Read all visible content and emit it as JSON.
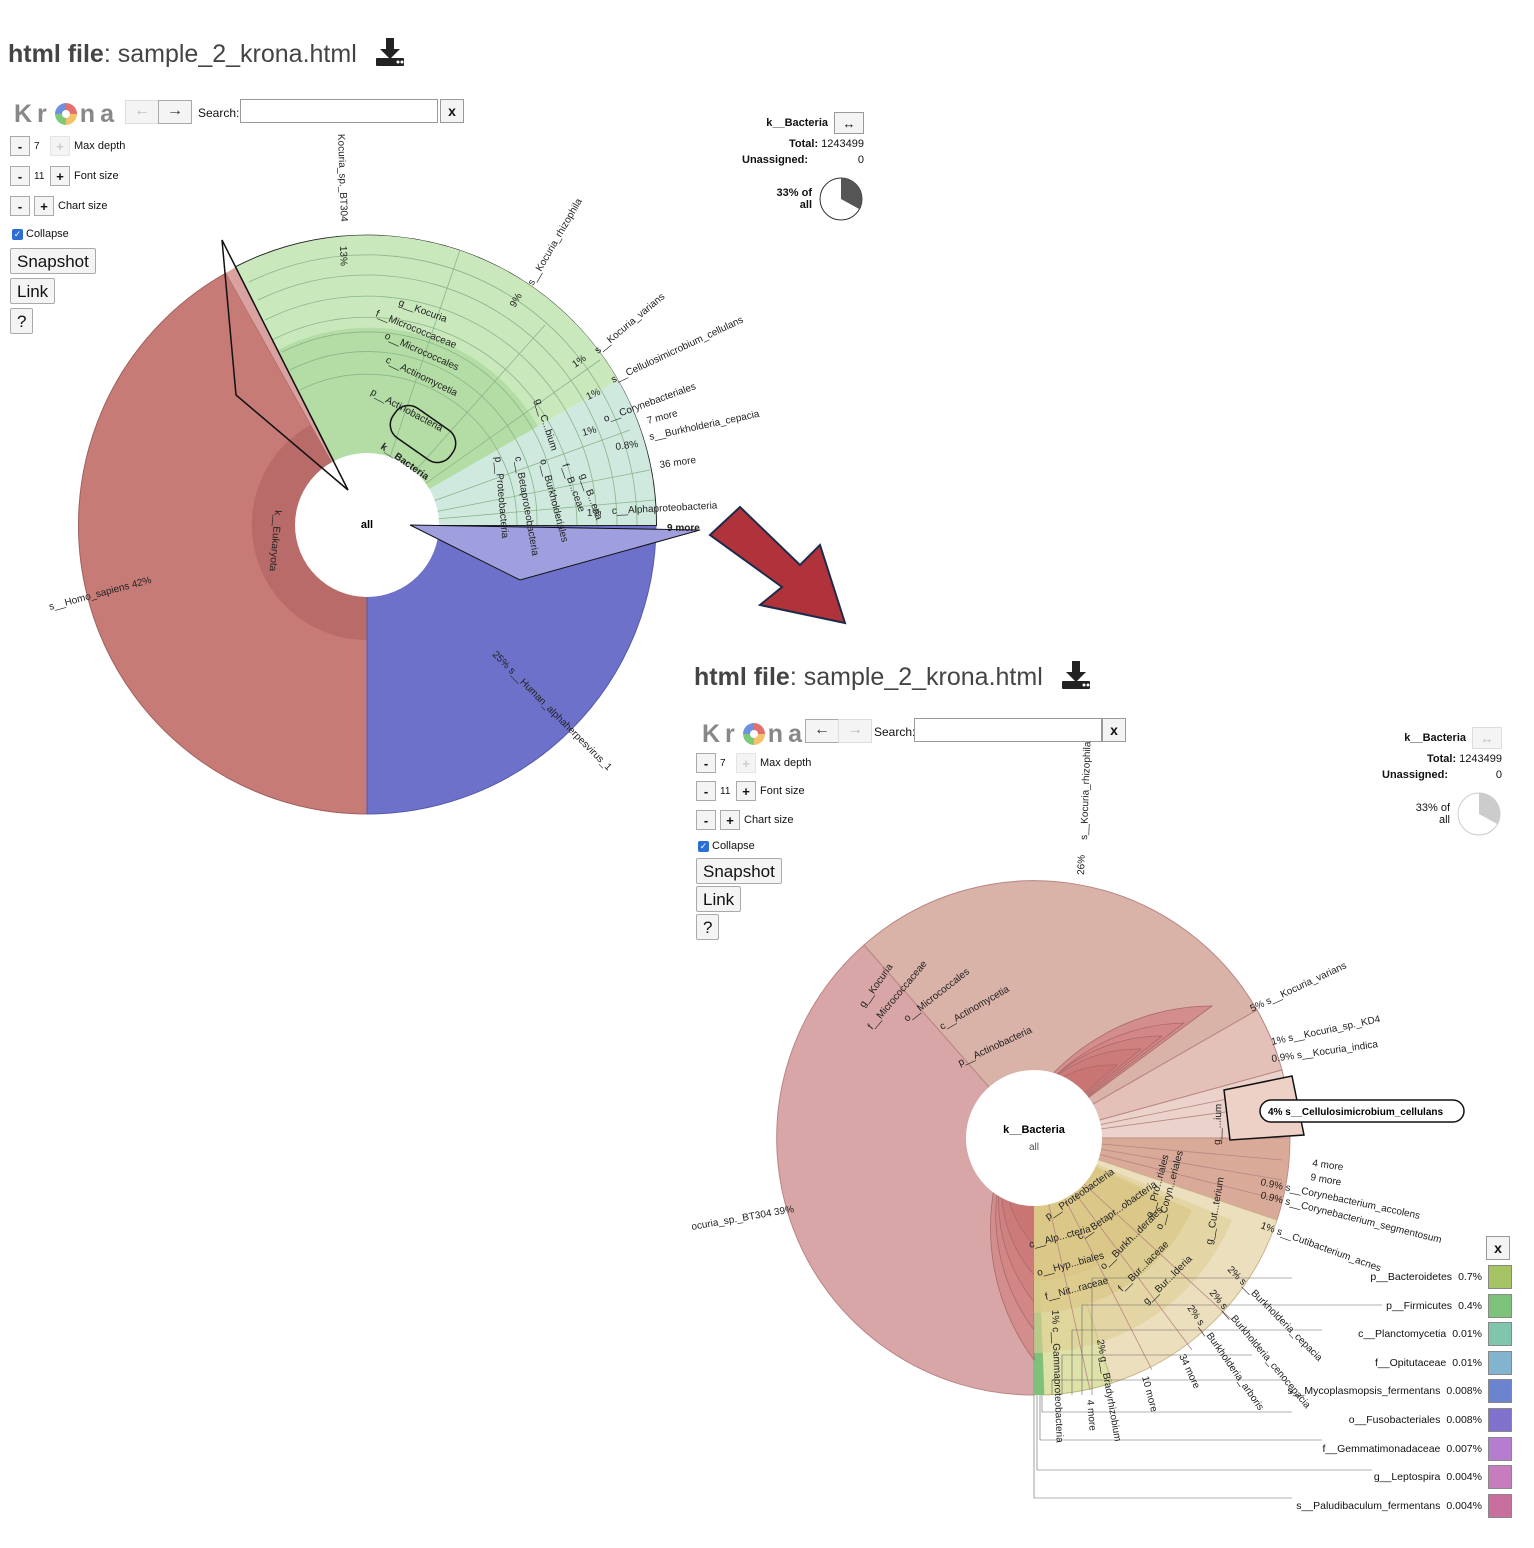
{
  "panel1": {
    "file_label": "html file",
    "file_name": ": sample_2_krona.html",
    "logo": {
      "left": "Kr",
      "right": "na"
    },
    "nav": {
      "back": "←",
      "forward": "→"
    },
    "search_label": "Search:",
    "search_value": "",
    "clear": "x",
    "controls": {
      "max_depth": {
        "minus": "-",
        "value": "7",
        "plus": "+",
        "label": "Max depth"
      },
      "font_size": {
        "minus": "-",
        "value": "11",
        "plus": "+",
        "label": "Font size"
      },
      "chart_size": {
        "minus": "-",
        "plus": "+",
        "label": "Chart size"
      }
    },
    "collapse_label": "Collapse",
    "snapshot": "Snapshot",
    "link": "Link",
    "help": "?",
    "info": {
      "name": "k__Bacteria",
      "swap": "↔",
      "total_label": "Total:",
      "total_value": "1243499",
      "unassigned_label": "Unassigned:",
      "unassigned_value": "0",
      "pct_line1": "33% of",
      "pct_line2": "all",
      "fraction": 0.33
    },
    "chart_labels": {
      "center": "all",
      "bacteria": "k__Bacteria",
      "eukaryota": "k__Eukaryota",
      "homo": "s__Homo_sapiens   42%",
      "hsv": "25%   s__Human_alphaherpesvirus_1",
      "kocuria_bt304": "Kocuria_sp._BT304",
      "kocuria_bt304_pct": "13%",
      "rhizophila": "s__Kocuria_rhizophila",
      "rhizophila_pct": "9%",
      "varians": "s__Kocuria_varians",
      "cellulans": "s__Cellulosimicrobium_cellulans",
      "coryne": "o__Corynebacteriales",
      "seven_more": "7 more",
      "cepacia": "s__Burkholderia_cepacia",
      "thirtysix_more": "36 more",
      "alpha": "c__Alphaproteobacteria",
      "nine_more": "9 more",
      "g_kocuria": "g__Kocuria",
      "f_micro": "f__Micrococcaceae",
      "o_micro": "o__Micrococcales",
      "c_actino": "c__Actinomycetia",
      "p_actino": "p__Actinobacteria",
      "p_proteo": "p__Proteobacteria",
      "c_beta": "c__Betaproteobacteria",
      "o_burk": "o__Burkholderiales",
      "f_burk": "f__B...ceae",
      "g_burk": "g__B...eria",
      "g_c": "g__C...bium",
      "pct_1a": "1%",
      "pct_1b": "1%",
      "pct_1c": "1%",
      "pct_1d": "1%",
      "pct_08": "0.8%"
    }
  },
  "panel2": {
    "file_label": "html file",
    "file_name": ": sample_2_krona.html",
    "logo": {
      "left": "Kr",
      "right": "na"
    },
    "nav": {
      "back": "←",
      "forward": "→"
    },
    "search_label": "Search:",
    "search_value": "",
    "clear": "x",
    "controls": {
      "max_depth": {
        "minus": "-",
        "value": "7",
        "plus": "+",
        "label": "Max depth"
      },
      "font_size": {
        "minus": "-",
        "value": "11",
        "plus": "+",
        "label": "Font size"
      },
      "chart_size": {
        "minus": "-",
        "plus": "+",
        "label": "Chart size"
      }
    },
    "collapse_label": "Collapse",
    "snapshot": "Snapshot",
    "link": "Link",
    "help": "?",
    "info": {
      "name": "k__Bacteria",
      "swap": "↔",
      "total_label": "Total:",
      "total_value": "1243499",
      "unassigned_label": "Unassigned:",
      "unassigned_value": "0",
      "pct_line1": "33% of",
      "pct_line2": "all",
      "fraction": 0.33
    },
    "chart_labels": {
      "center_name": "k__Bacteria",
      "center_sub": "all",
      "bt304": "ocuria_sp._BT304   39%",
      "rhizophila": "s__Kocuria_rhizophila",
      "rhizophila_pct": "26%",
      "varians": "5%   s__Kocuria_varians",
      "kd4": "1%   s__Kocuria_sp._KD4",
      "indica": "0.9%   s__Kocuria_indica",
      "cellulans": "4%   s__Cellulosimicrobium_cellulans",
      "four_more_a": "4 more",
      "nine_more": "9 more",
      "accolens": "0.9%   s__Corynebacterium_accolens",
      "segmentosum": "0.9%   s__Corynebacterium_segmentosum",
      "acnes": "1%   s__Cutibacterium_acnes",
      "b_cepacia": "2%   s__Burkholderia_cepacia",
      "b_cenocepacia": "2%   s__Burkholderia_cenocepacia",
      "b_arboris": "2%   s__Burkholderia_arboris",
      "thirtyfour_more": "34 more",
      "ten_more": "10 more",
      "brady": "2%   g__Bradyrhizobium",
      "four_more_b": "4 more",
      "gamma": "1%   c__Gammaproteobacteria",
      "g_kocuria": "g__Kocuria",
      "f_micro": "f__Micrococcaceae",
      "o_micro": "o__Micrococcales",
      "c_actino": "c__Actinomycetia",
      "p_actino": "p__Actinobacteria",
      "p_proteo": "p__Proteobacteria",
      "c_alp": "c__Alp...cteria",
      "c_betapr": "c__Betapr...obacteria",
      "o_hyp": "o__Hyp...biales",
      "o_burkh": "o__Burkh...derales",
      "f_nit": "f__Nit...raceae",
      "f_bur": "f__Bur...iaceae",
      "g_bur": "g__Bur...lderia",
      "o_coryn": "o__Coryn...eriales",
      "o_pro": "o__Pro...riales",
      "g_ium": "g__...ium",
      "g_cut": "g__Cut...terium"
    },
    "legend_close": "x",
    "legend": [
      {
        "label": "p__Bacteroidetes",
        "pct": "0.7%",
        "color": "#a6c464"
      },
      {
        "label": "p__Firmicutes",
        "pct": "0.4%",
        "color": "#7cc27a"
      },
      {
        "label": "c__Planctomycetia",
        "pct": "0.01%",
        "color": "#7fc6ad"
      },
      {
        "label": "f__Opitutaceae",
        "pct": "0.01%",
        "color": "#82b3cf"
      },
      {
        "label": "s__Mycoplasmopsis_fermentans",
        "pct": "0.008%",
        "color": "#6c84d0"
      },
      {
        "label": "o__Fusobacteriales",
        "pct": "0.008%",
        "color": "#8072cc"
      },
      {
        "label": "f__Gemmatimonadaceae",
        "pct": "0.007%",
        "color": "#b57ccf"
      },
      {
        "label": "g__Leptospira",
        "pct": "0.004%",
        "color": "#c77cbd"
      },
      {
        "label": "s__Paludibaculum_fermentans",
        "pct": "0.004%",
        "color": "#c96f9e"
      }
    ]
  },
  "colors": {
    "eukaryota": "#c77b77",
    "virus": "#6d71c9",
    "actinobacteria": "#a9d89a",
    "proteobacteria": "#b9e0cf",
    "bacteria_inner": "#d6f0c8",
    "zoom_actino": "#c97a78",
    "zoom_outer": "#d8a6a6",
    "zoom_proteo": "#d6c27a",
    "arrow": "#b0323a"
  }
}
